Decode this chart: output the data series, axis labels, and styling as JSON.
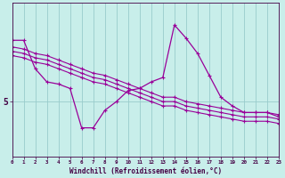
{
  "xlabel": "Windchill (Refroidissement éolien,°C)",
  "bg_color": "#c8eeea",
  "grid_color": "#99cccc",
  "line_color": "#990099",
  "axis_color": "#440044",
  "ytick_label": "5",
  "ytick_val": 5,
  "ylim": [
    2.5,
    9.5
  ],
  "xlim": [
    0,
    23
  ],
  "xticks": [
    0,
    1,
    2,
    3,
    4,
    5,
    6,
    7,
    8,
    9,
    10,
    11,
    12,
    13,
    14,
    15,
    16,
    17,
    18,
    19,
    20,
    21,
    22,
    23
  ],
  "series1_x": [
    0,
    1,
    2,
    3,
    4,
    5,
    6,
    7,
    8,
    9,
    10,
    11,
    12,
    13,
    14,
    15,
    16,
    17,
    18,
    19,
    20,
    21,
    22,
    23
  ],
  "series1_y": [
    7.8,
    7.8,
    6.5,
    5.9,
    5.8,
    5.6,
    3.8,
    3.8,
    4.6,
    5.0,
    5.5,
    5.6,
    5.9,
    6.1,
    8.5,
    7.9,
    7.2,
    6.2,
    5.2,
    4.8,
    4.5,
    4.5,
    4.5,
    4.3
  ],
  "series2_x": [
    0,
    1,
    2,
    3,
    4,
    5,
    6,
    7,
    8,
    9,
    10,
    11,
    12,
    13,
    14,
    15,
    16,
    17,
    18,
    19,
    20,
    21,
    22,
    23
  ],
  "series2_y": [
    7.5,
    7.4,
    7.2,
    7.1,
    6.9,
    6.7,
    6.5,
    6.3,
    6.2,
    6.0,
    5.8,
    5.6,
    5.4,
    5.2,
    5.2,
    5.0,
    4.9,
    4.8,
    4.7,
    4.6,
    4.5,
    4.5,
    4.5,
    4.4
  ],
  "series3_x": [
    0,
    1,
    2,
    3,
    4,
    5,
    6,
    7,
    8,
    9,
    10,
    11,
    12,
    13,
    14,
    15,
    16,
    17,
    18,
    19,
    20,
    21,
    22,
    23
  ],
  "series3_y": [
    7.3,
    7.2,
    7.0,
    6.9,
    6.7,
    6.5,
    6.3,
    6.1,
    6.0,
    5.8,
    5.6,
    5.4,
    5.2,
    5.0,
    5.0,
    4.8,
    4.7,
    4.6,
    4.5,
    4.4,
    4.3,
    4.3,
    4.3,
    4.2
  ],
  "series4_x": [
    0,
    1,
    2,
    3,
    4,
    5,
    6,
    7,
    8,
    9,
    10,
    11,
    12,
    13,
    14,
    15,
    16,
    17,
    18,
    19,
    20,
    21,
    22,
    23
  ],
  "series4_y": [
    7.1,
    7.0,
    6.8,
    6.7,
    6.5,
    6.3,
    6.1,
    5.9,
    5.8,
    5.6,
    5.4,
    5.2,
    5.0,
    4.8,
    4.8,
    4.6,
    4.5,
    4.4,
    4.3,
    4.2,
    4.1,
    4.1,
    4.1,
    4.0
  ]
}
